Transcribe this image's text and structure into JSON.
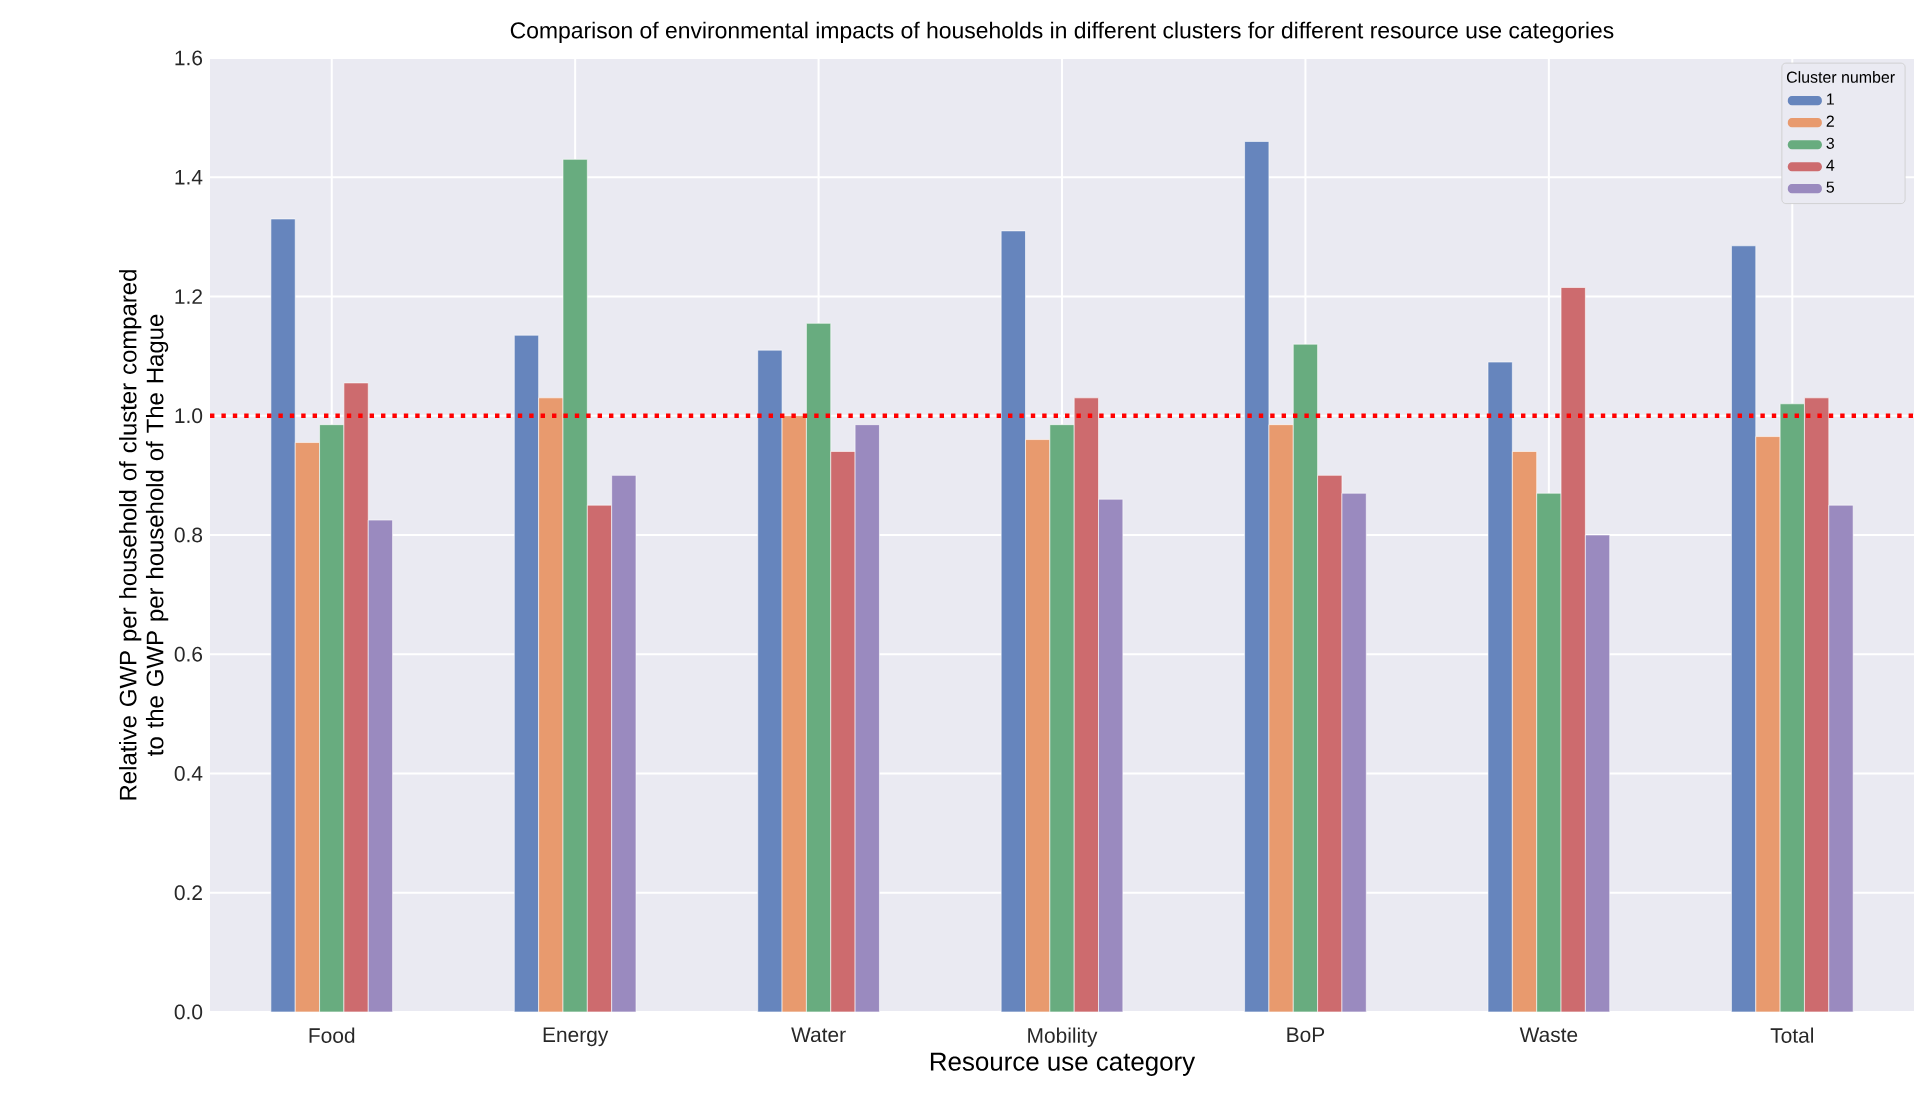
{
  "chart_data": {
    "type": "bar",
    "title": "Comparison of environmental impacts of households in different clusters for different resource use categories",
    "xlabel": "Resource use category",
    "ylabel": "Relative GWP per household of cluster compared to the GWP per  household of The Hague",
    "legend_title": "Cluster number",
    "categories": [
      "Food",
      "Energy",
      "Water",
      "Mobility",
      "BoP",
      "Waste",
      "Total"
    ],
    "series": [
      {
        "name": "1",
        "color": "#6685bd",
        "values": [
          1.33,
          1.135,
          1.11,
          1.31,
          1.46,
          1.09,
          1.285
        ]
      },
      {
        "name": "2",
        "color": "#e89a6e",
        "values": [
          0.955,
          1.03,
          1.0,
          0.96,
          0.985,
          0.94,
          0.965
        ]
      },
      {
        "name": "3",
        "color": "#68ac7f",
        "values": [
          0.985,
          1.43,
          1.155,
          0.985,
          1.12,
          0.87,
          1.02
        ]
      },
      {
        "name": "4",
        "color": "#cd6b6e",
        "values": [
          1.055,
          0.85,
          0.94,
          1.03,
          0.9,
          1.215,
          1.03
        ]
      },
      {
        "name": "5",
        "color": "#9a8abf",
        "values": [
          0.825,
          0.9,
          0.985,
          0.86,
          0.87,
          0.8,
          0.85
        ]
      }
    ],
    "ylim": [
      0,
      1.6
    ],
    "yticks": [
      {
        "value": 0,
        "label": "0.0"
      },
      {
        "value": 0.2,
        "label": "0.2"
      },
      {
        "value": 0.4,
        "label": "0.4"
      },
      {
        "value": 0.6,
        "label": "0.6"
      },
      {
        "value": 0.8,
        "label": "0.8"
      },
      {
        "value": 1.0,
        "label": "1.0"
      },
      {
        "value": 1.2,
        "label": "1.2"
      },
      {
        "value": 1.4,
        "label": "1.4"
      },
      {
        "value": 1.6,
        "label": "1.6"
      }
    ],
    "ref_lines": [
      {
        "axis": "y",
        "value": 1.0,
        "color": "#ff0000",
        "line_style": "dotted"
      }
    ],
    "grid": true,
    "legend": "top right"
  }
}
